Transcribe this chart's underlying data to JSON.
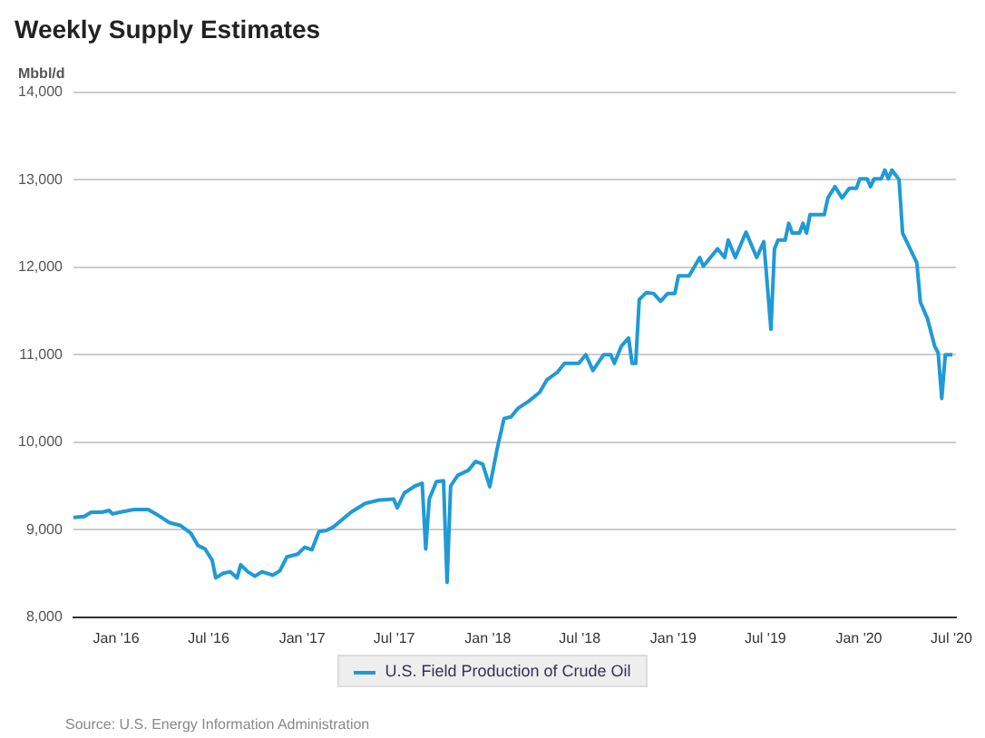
{
  "chart_data": {
    "type": "line",
    "title": "Weekly Supply Estimates",
    "ylabel": "Mbbl/d",
    "annotations": [
      "Source: U.S. Energy Information Administration"
    ],
    "x": [
      "2015-10-09",
      "2015-10-30",
      "2015-11-13",
      "2015-12-04",
      "2015-12-18",
      "2015-12-25",
      "2016-01-08",
      "2016-02-05",
      "2016-03-04",
      "2016-03-25",
      "2016-04-15",
      "2016-05-06",
      "2016-05-27",
      "2016-06-10",
      "2016-06-24",
      "2016-07-08",
      "2016-07-15",
      "2016-07-29",
      "2016-08-12",
      "2016-08-26",
      "2016-09-02",
      "2016-09-16",
      "2016-09-30",
      "2016-10-14",
      "2016-11-04",
      "2016-11-18",
      "2016-12-02",
      "2016-12-23",
      "2017-01-06",
      "2017-01-20",
      "2017-02-03",
      "2017-02-17",
      "2017-03-03",
      "2017-04-07",
      "2017-05-05",
      "2017-06-02",
      "2017-06-30",
      "2017-07-07",
      "2017-07-21",
      "2017-08-11",
      "2017-08-25",
      "2017-09-01",
      "2017-09-08",
      "2017-09-22",
      "2017-10-06",
      "2017-10-13",
      "2017-10-20",
      "2017-11-03",
      "2017-11-24",
      "2017-12-08",
      "2017-12-22",
      "2018-01-05",
      "2018-01-19",
      "2018-02-02",
      "2018-02-16",
      "2018-03-02",
      "2018-03-23",
      "2018-04-13",
      "2018-04-27",
      "2018-05-18",
      "2018-06-01",
      "2018-06-29",
      "2018-07-13",
      "2018-07-27",
      "2018-08-17",
      "2018-08-31",
      "2018-09-07",
      "2018-09-21",
      "2018-10-05",
      "2018-10-12",
      "2018-10-19",
      "2018-10-26",
      "2018-11-09",
      "2018-11-23",
      "2018-12-07",
      "2018-12-21",
      "2019-01-04",
      "2019-01-11",
      "2019-02-01",
      "2019-02-22",
      "2019-03-01",
      "2019-03-15",
      "2019-03-29",
      "2019-04-12",
      "2019-04-19",
      "2019-05-03",
      "2019-05-24",
      "2019-06-14",
      "2019-06-28",
      "2019-07-12",
      "2019-07-19",
      "2019-07-26",
      "2019-08-09",
      "2019-08-16",
      "2019-08-23",
      "2019-09-06",
      "2019-09-13",
      "2019-09-20",
      "2019-09-27",
      "2019-10-25",
      "2019-11-01",
      "2019-11-15",
      "2019-11-29",
      "2019-12-13",
      "2019-12-27",
      "2020-01-03",
      "2020-01-17",
      "2020-01-24",
      "2020-01-31",
      "2020-02-14",
      "2020-02-21",
      "2020-02-28",
      "2020-03-06",
      "2020-03-20",
      "2020-03-27",
      "2020-04-24",
      "2020-05-01",
      "2020-05-15",
      "2020-05-29",
      "2020-06-05",
      "2020-06-12",
      "2020-06-19",
      "2020-07-03"
    ],
    "series": [
      {
        "name": "U.S. Field Production of Crude Oil",
        "color": "#1f9ad6",
        "values": [
          9140,
          9150,
          9200,
          9200,
          9220,
          9180,
          9200,
          9230,
          9230,
          9160,
          9080,
          9050,
          8960,
          8820,
          8780,
          8650,
          8450,
          8500,
          8520,
          8450,
          8600,
          8520,
          8470,
          8520,
          8480,
          8530,
          8690,
          8720,
          8800,
          8770,
          8980,
          8990,
          9030,
          9200,
          9300,
          9340,
          9350,
          9250,
          9420,
          9500,
          9530,
          8780,
          9350,
          9550,
          9560,
          8400,
          9500,
          9620,
          9680,
          9780,
          9750,
          9490,
          9910,
          10270,
          10290,
          10390,
          10470,
          10570,
          10710,
          10800,
          10900,
          10900,
          11000,
          10820,
          11000,
          11000,
          10900,
          11100,
          11190,
          10900,
          10900,
          11630,
          11710,
          11700,
          11610,
          11700,
          11700,
          11900,
          11900,
          12110,
          12010,
          12110,
          12210,
          12110,
          12310,
          12110,
          12400,
          12110,
          12290,
          11290,
          12210,
          12310,
          12310,
          12500,
          12390,
          12390,
          12500,
          12390,
          12600,
          12600,
          12790,
          12920,
          12790,
          12900,
          12900,
          13010,
          13010,
          12920,
          13010,
          13010,
          13110,
          13010,
          13110,
          13000,
          12390,
          12050,
          11600,
          11410,
          11100,
          11020,
          10500,
          11000,
          11000
        ]
      }
    ],
    "xlim": [
      "2015-10-09",
      "2020-07-10"
    ],
    "xticks": [
      {
        "value": "2016-01-01",
        "label": "Jan '16"
      },
      {
        "value": "2016-07-01",
        "label": "Jul '16"
      },
      {
        "value": "2017-01-01",
        "label": "Jan '17"
      },
      {
        "value": "2017-07-01",
        "label": "Jul '17"
      },
      {
        "value": "2018-01-01",
        "label": "Jan '18"
      },
      {
        "value": "2018-07-01",
        "label": "Jul '18"
      },
      {
        "value": "2019-01-01",
        "label": "Jan '19"
      },
      {
        "value": "2019-07-01",
        "label": "Jul '19"
      },
      {
        "value": "2020-01-01",
        "label": "Jan '20"
      },
      {
        "value": "2020-07-01",
        "label": "Jul '20"
      }
    ],
    "ylim": [
      8000,
      14000
    ],
    "yticks": [
      {
        "value": 8000,
        "label": "8,000"
      },
      {
        "value": 9000,
        "label": "9,000"
      },
      {
        "value": 10000,
        "label": "10,000"
      },
      {
        "value": 11000,
        "label": "11,000"
      },
      {
        "value": 12000,
        "label": "12,000"
      },
      {
        "value": 13000,
        "label": "13,000"
      },
      {
        "value": 14000,
        "label": "14,000"
      }
    ],
    "grid": "y",
    "legend": "bottom",
    "marker": "none",
    "line_style": "solid"
  }
}
